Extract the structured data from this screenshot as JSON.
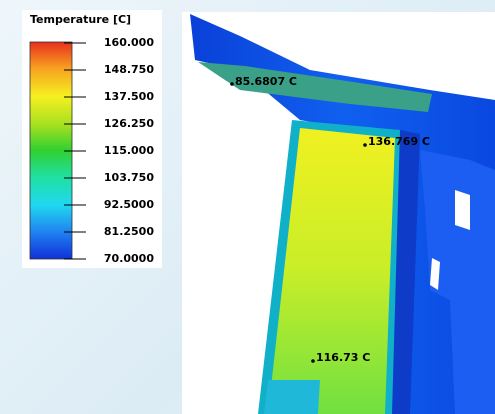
{
  "legend": {
    "title": "Temperature [C]",
    "labels": [
      "160.000",
      "148.750",
      "137.500",
      "126.250",
      "115.000",
      "103.750",
      "92.5000",
      "81.2500",
      "70.0000"
    ]
  },
  "annotations": [
    "85.6807 C",
    "136.769 C",
    "116.73 C"
  ]
}
